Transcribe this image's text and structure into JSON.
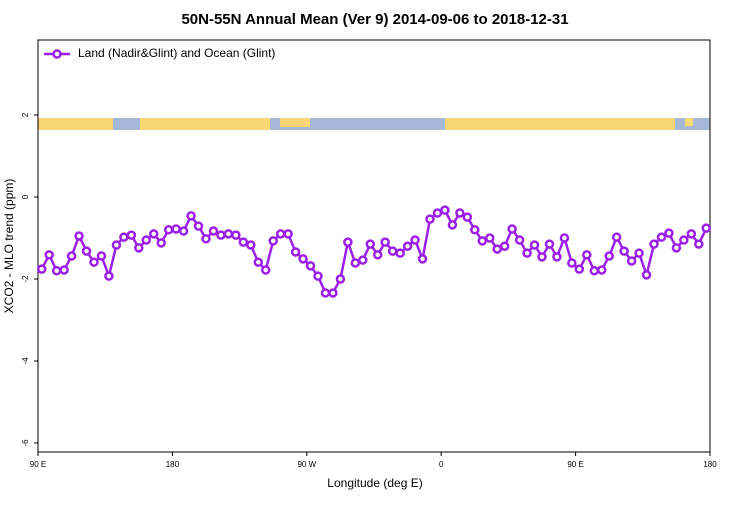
{
  "chart_data": {
    "type": "line",
    "title": "50N-55N Annual Mean (Ver 9)   2014-09-06 to 2018-12-31",
    "x_label": "Longitude (deg E)",
    "y_label": "XCO2 - MLO trend (ppm)",
    "xlim": [
      90,
      540
    ],
    "ylim": [
      -6.22,
      3.83
    ],
    "xticks": [
      {
        "value": 90,
        "label": "90 E"
      },
      180,
      {
        "value": 270,
        "label": "90 W"
      },
      {
        "value": 360,
        "label": "0"
      },
      {
        "value": 450,
        "label": "90 E"
      },
      {
        "value": 540,
        "label": "180"
      }
    ],
    "yticks": [
      2,
      0,
      -2,
      -4,
      -6
    ],
    "legend": "top-left",
    "x": [
      92.5,
      97.5,
      102.5,
      107.5,
      112.5,
      117.5,
      122.5,
      127.5,
      132.5,
      137.5,
      142.5,
      147.5,
      152.5,
      157.5,
      162.5,
      167.5,
      172.5,
      177.5,
      182.5,
      187.5,
      192.5,
      197.5,
      202.5,
      207.5,
      212.5,
      217.5,
      222.5,
      227.5,
      232.5,
      237.5,
      242.5,
      247.5,
      252.5,
      257.5,
      262.5,
      267.5,
      272.5,
      277.5,
      282.5,
      287.5,
      292.5,
      297.5,
      302.5,
      307.5,
      312.5,
      317.5,
      322.5,
      327.5,
      332.5,
      337.5,
      342.5,
      347.5,
      352.5,
      357.5,
      362.5,
      367.5,
      372.5,
      377.5,
      382.5,
      387.5,
      392.5,
      397.5,
      402.5,
      407.5,
      412.5,
      417.5,
      422.5,
      427.5,
      432.5,
      437.5,
      442.5,
      447.5,
      452.5,
      457.5,
      462.5,
      467.5,
      472.5,
      477.5,
      482.5,
      487.5,
      492.5,
      497.5,
      502.5,
      507.5,
      512.5,
      517.5,
      522.5,
      527.5,
      532.5,
      537.5
    ],
    "series": [
      {
        "name": "Land (Nadir&Glint) and Ocean (Glint)",
        "color": "#9b1fe8",
        "values": [
          -1.76,
          -1.41,
          -1.8,
          -1.78,
          -1.44,
          -0.95,
          -1.32,
          -1.59,
          -1.44,
          -1.93,
          -1.17,
          -0.98,
          -0.93,
          -1.24,
          -1.05,
          -0.9,
          -1.12,
          -0.8,
          -0.78,
          -0.83,
          -0.46,
          -0.71,
          -1.02,
          -0.83,
          -0.93,
          -0.9,
          -0.93,
          -1.1,
          -1.17,
          -1.59,
          -1.78,
          -1.07,
          -0.9,
          -0.9,
          -1.34,
          -1.51,
          -1.68,
          -1.93,
          -2.34,
          -2.34,
          -2.0,
          -1.1,
          -1.61,
          -1.54,
          -1.15,
          -1.41,
          -1.1,
          -1.32,
          -1.37,
          -1.2,
          -1.05,
          -1.51,
          -0.54,
          -0.39,
          -0.32,
          -0.68,
          -0.39,
          -0.49,
          -0.8,
          -1.07,
          -1.0,
          -1.27,
          -1.2,
          -0.78,
          -1.05,
          -1.37,
          -1.17,
          -1.46,
          -1.15,
          -1.46,
          -1.0,
          -1.61,
          -1.76,
          -1.41,
          -1.8,
          -1.78,
          -1.44,
          -0.98,
          -1.32,
          -1.56,
          -1.37,
          -1.9,
          -1.15,
          -0.98,
          -0.88,
          -1.24,
          -1.05,
          -0.9,
          -1.15,
          -0.76
        ]
      }
    ]
  }
}
